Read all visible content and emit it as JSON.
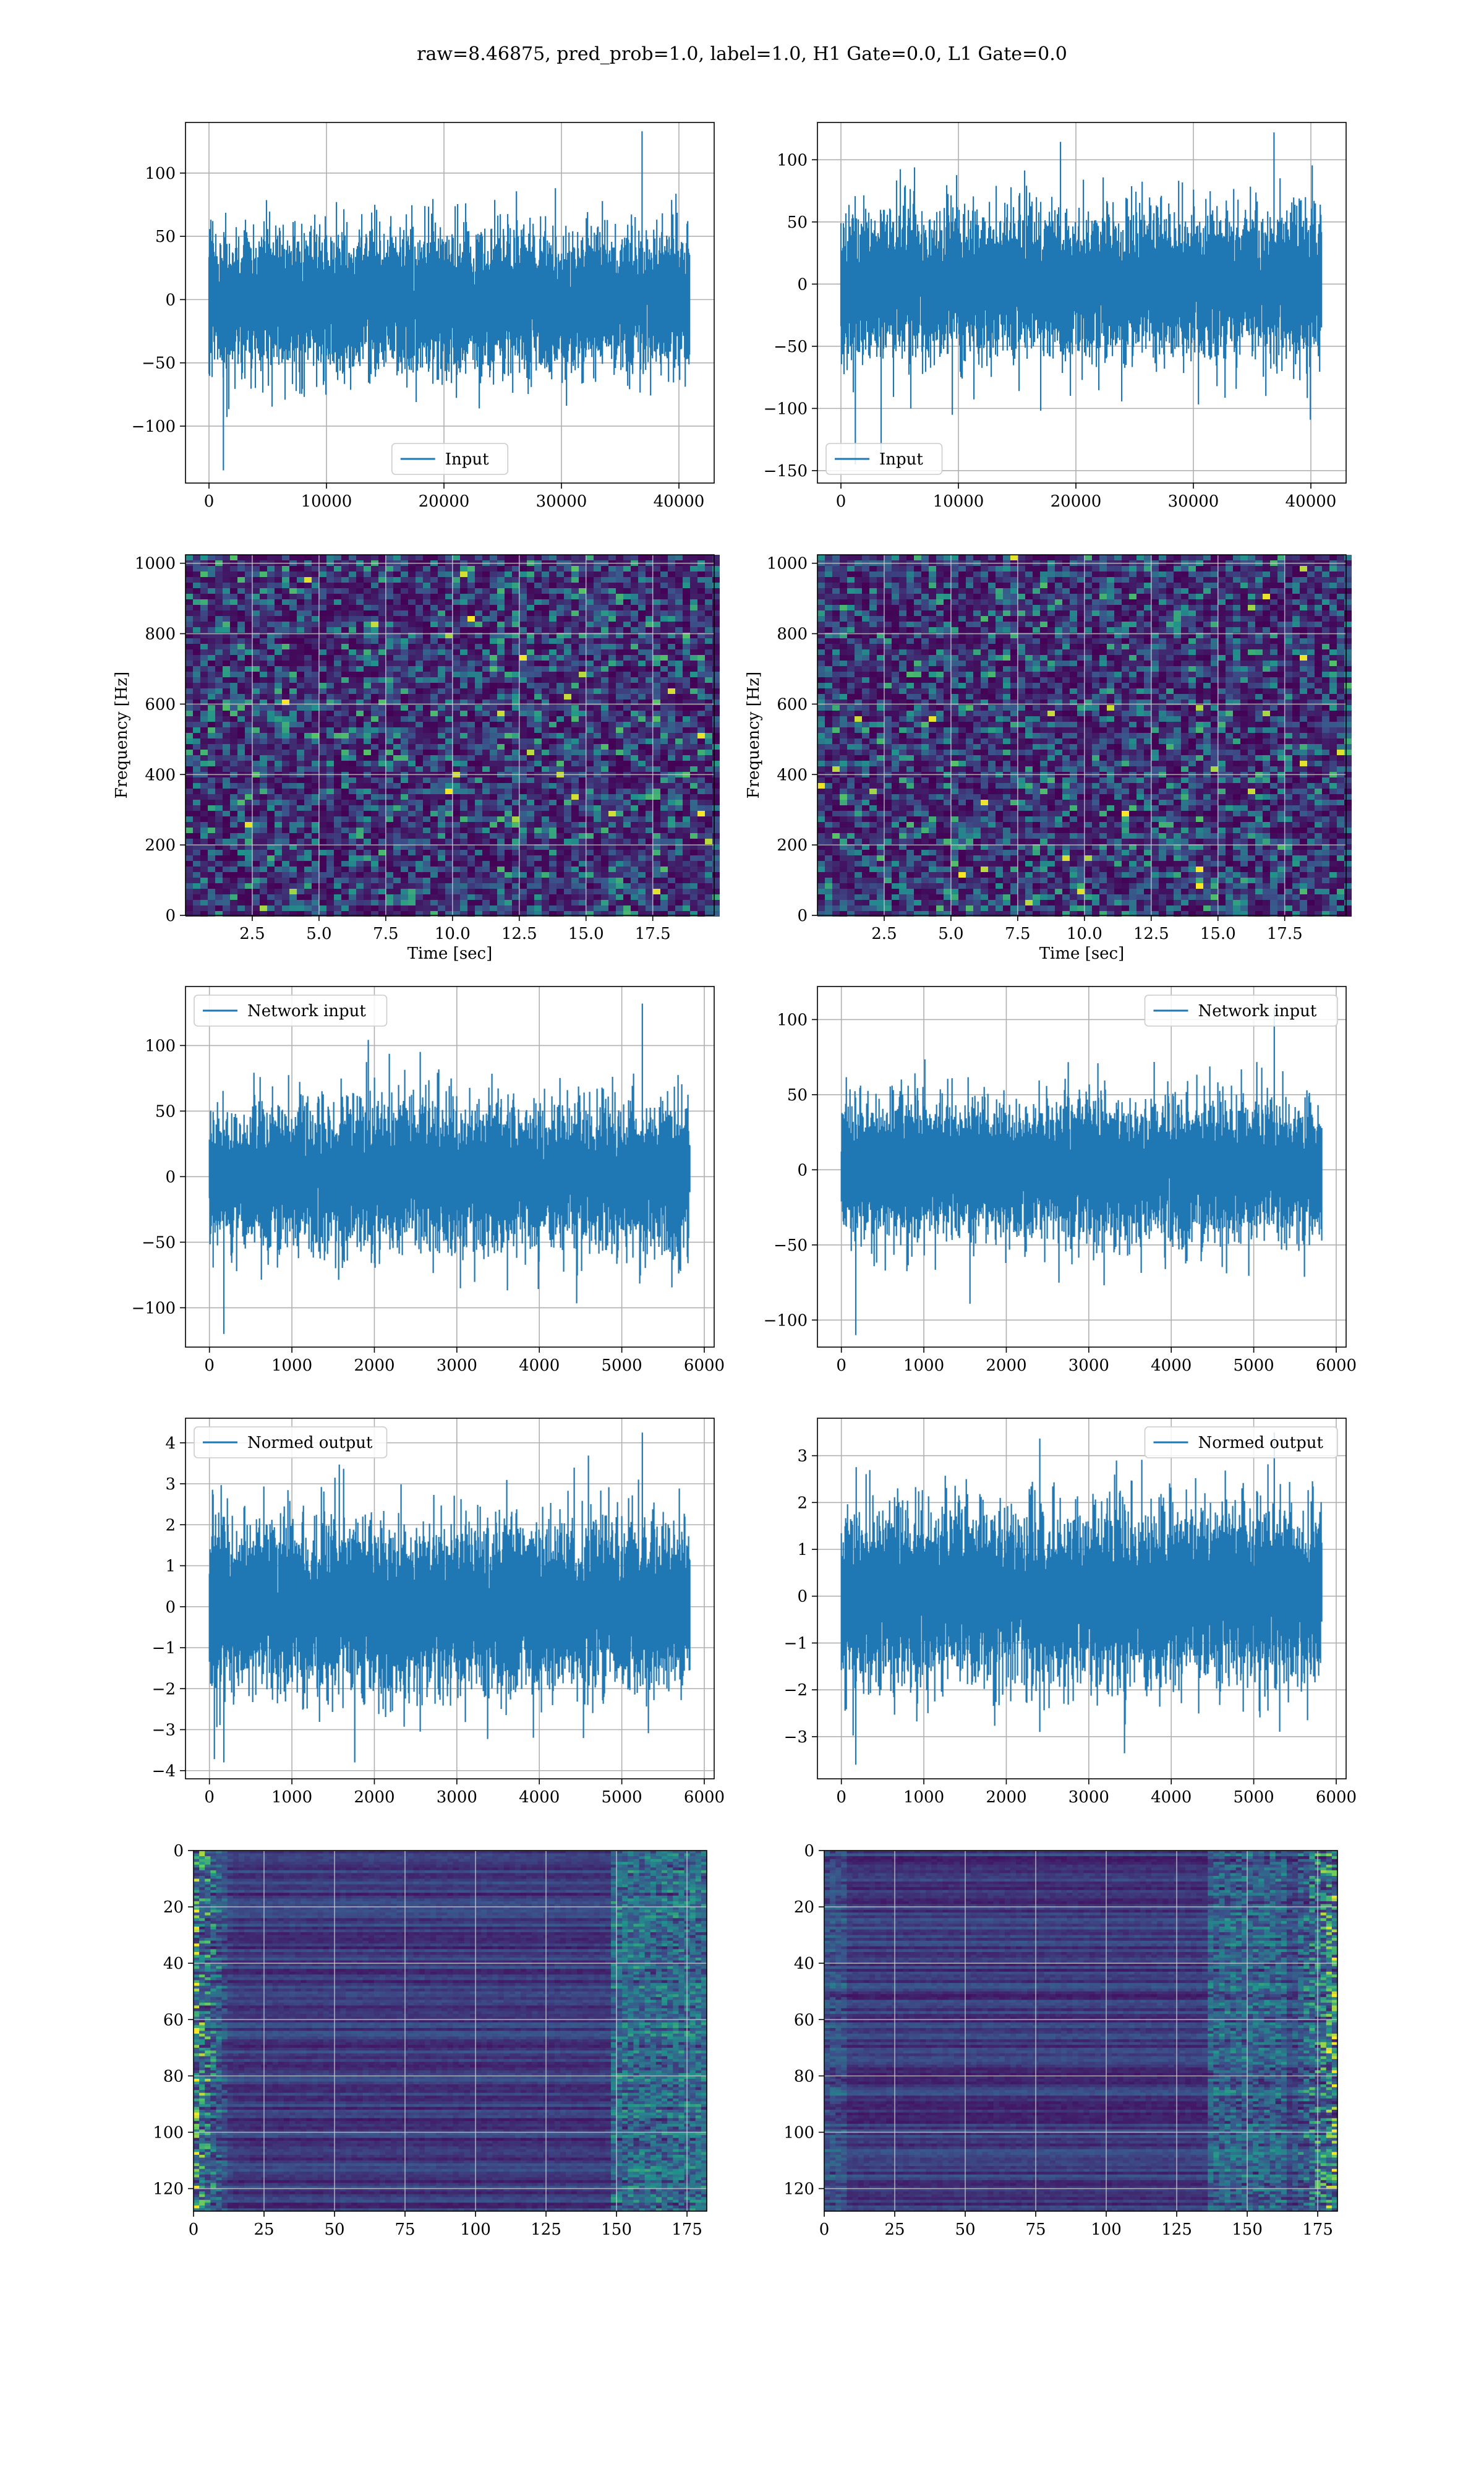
{
  "figure": {
    "title": "raw=8.46875, pred_prob=1.0, label=1.0, H1 Gate=0.0, L1 Gate=0.0"
  },
  "colors": {
    "series": "#1f77b4",
    "grid": "#b0b0b0",
    "viridis_low": "#440154",
    "viridis_mid": "#21918c",
    "viridis_high": "#fde725"
  },
  "chart_data": [
    {
      "id": "h1-input",
      "type": "line",
      "title": "",
      "xlabel": "",
      "ylabel": "",
      "xlim": [
        -2000,
        43000
      ],
      "ylim": [
        -145,
        140
      ],
      "xticks": [
        0,
        10000,
        20000,
        30000,
        40000
      ],
      "yticks": [
        -100,
        -50,
        0,
        50,
        100
      ],
      "grid": true,
      "legend": "lower center",
      "series": [
        {
          "name": "Input",
          "n_samples": 40960,
          "x_range": [
            0,
            40960
          ],
          "typical_abs": 65,
          "extreme_range": [
            -135,
            133
          ]
        }
      ]
    },
    {
      "id": "l1-input",
      "type": "line",
      "title": "",
      "xlabel": "",
      "ylabel": "",
      "xlim": [
        -2000,
        43000
      ],
      "ylim": [
        -160,
        130
      ],
      "xticks": [
        0,
        10000,
        20000,
        30000,
        40000
      ],
      "yticks": [
        -150,
        -100,
        -50,
        0,
        50,
        100
      ],
      "grid": true,
      "legend": "lower left",
      "series": [
        {
          "name": "Input",
          "n_samples": 40960,
          "x_range": [
            0,
            40960
          ],
          "typical_abs": 70,
          "extreme_range": [
            -145,
            122
          ]
        }
      ]
    },
    {
      "id": "h1-spectrogram",
      "type": "heatmap",
      "title": "",
      "xlabel": "Time [sec]",
      "ylabel": "Frequency [Hz]",
      "xlim": [
        0,
        19.8
      ],
      "ylim": [
        0,
        1024
      ],
      "xticks": [
        2.5,
        5.0,
        7.5,
        10.0,
        12.5,
        15.0,
        17.5
      ],
      "yticks": [
        0,
        200,
        400,
        600,
        800,
        1000
      ],
      "colormap": "viridis",
      "grid": true
    },
    {
      "id": "l1-spectrogram",
      "type": "heatmap",
      "title": "",
      "xlabel": "Time [sec]",
      "ylabel": "Frequency [Hz]",
      "xlim": [
        0,
        19.8
      ],
      "ylim": [
        0,
        1024
      ],
      "xticks": [
        2.5,
        5.0,
        7.5,
        10.0,
        12.5,
        15.0,
        17.5
      ],
      "yticks": [
        0,
        200,
        400,
        600,
        800,
        1000
      ],
      "colormap": "viridis",
      "grid": true
    },
    {
      "id": "h1-network-input",
      "type": "line",
      "title": "",
      "xlabel": "",
      "ylabel": "",
      "xlim": [
        -290,
        6120
      ],
      "ylim": [
        -130,
        145
      ],
      "xticks": [
        0,
        1000,
        2000,
        3000,
        4000,
        5000,
        6000
      ],
      "yticks": [
        -100,
        -50,
        0,
        50,
        100
      ],
      "grid": true,
      "legend": "upper left",
      "series": [
        {
          "name": "Network input",
          "n_samples": 5832,
          "x_range": [
            0,
            5832
          ],
          "typical_abs": 65,
          "extreme_range": [
            -120,
            132
          ]
        }
      ]
    },
    {
      "id": "l1-network-input",
      "type": "line",
      "title": "",
      "xlabel": "",
      "ylabel": "",
      "xlim": [
        -290,
        6120
      ],
      "ylim": [
        -118,
        122
      ],
      "xticks": [
        0,
        1000,
        2000,
        3000,
        4000,
        5000,
        6000
      ],
      "yticks": [
        -100,
        -50,
        0,
        50,
        100
      ],
      "grid": true,
      "legend": "upper right",
      "series": [
        {
          "name": "Network input",
          "n_samples": 5832,
          "x_range": [
            0,
            5832
          ],
          "typical_abs": 55,
          "extreme_range": [
            -110,
            108
          ]
        }
      ]
    },
    {
      "id": "h1-normed-output",
      "type": "line",
      "title": "",
      "xlabel": "",
      "ylabel": "",
      "xlim": [
        -290,
        6120
      ],
      "ylim": [
        -4.2,
        4.6
      ],
      "xticks": [
        0,
        1000,
        2000,
        3000,
        4000,
        5000,
        6000
      ],
      "yticks": [
        -4,
        -3,
        -2,
        -1,
        0,
        1,
        2,
        3,
        4
      ],
      "grid": true,
      "legend": "upper left",
      "series": [
        {
          "name": "Normed output",
          "n_samples": 5832,
          "x_range": [
            0,
            5832
          ],
          "typical_abs": 2.4,
          "extreme_range": [
            -3.8,
            4.25
          ]
        }
      ]
    },
    {
      "id": "l1-normed-output",
      "type": "line",
      "title": "",
      "xlabel": "",
      "ylabel": "",
      "xlim": [
        -290,
        6120
      ],
      "ylim": [
        -3.9,
        3.8
      ],
      "xticks": [
        0,
        1000,
        2000,
        3000,
        4000,
        5000,
        6000
      ],
      "yticks": [
        -3,
        -2,
        -1,
        0,
        1,
        2,
        3
      ],
      "grid": true,
      "legend": "upper right",
      "series": [
        {
          "name": "Normed output",
          "n_samples": 5832,
          "x_range": [
            0,
            5832
          ],
          "typical_abs": 2.2,
          "extreme_range": [
            -3.6,
            3.5
          ]
        }
      ]
    },
    {
      "id": "h1-feature-map",
      "type": "heatmap",
      "title": "",
      "xlabel": "",
      "ylabel": "",
      "xlim": [
        0,
        182
      ],
      "ylim": [
        128,
        0
      ],
      "xticks": [
        0,
        25,
        50,
        75,
        100,
        125,
        150,
        175
      ],
      "yticks": [
        0,
        20,
        40,
        60,
        80,
        100,
        120
      ],
      "colormap": "viridis",
      "grid": true,
      "activity": "left-edge"
    },
    {
      "id": "l1-feature-map",
      "type": "heatmap",
      "title": "",
      "xlabel": "",
      "ylabel": "",
      "xlim": [
        0,
        182
      ],
      "ylim": [
        128,
        0
      ],
      "xticks": [
        0,
        25,
        50,
        75,
        100,
        125,
        150,
        175
      ],
      "yticks": [
        0,
        20,
        40,
        60,
        80,
        100,
        120
      ],
      "colormap": "viridis",
      "grid": true,
      "activity": "right-edge"
    }
  ]
}
